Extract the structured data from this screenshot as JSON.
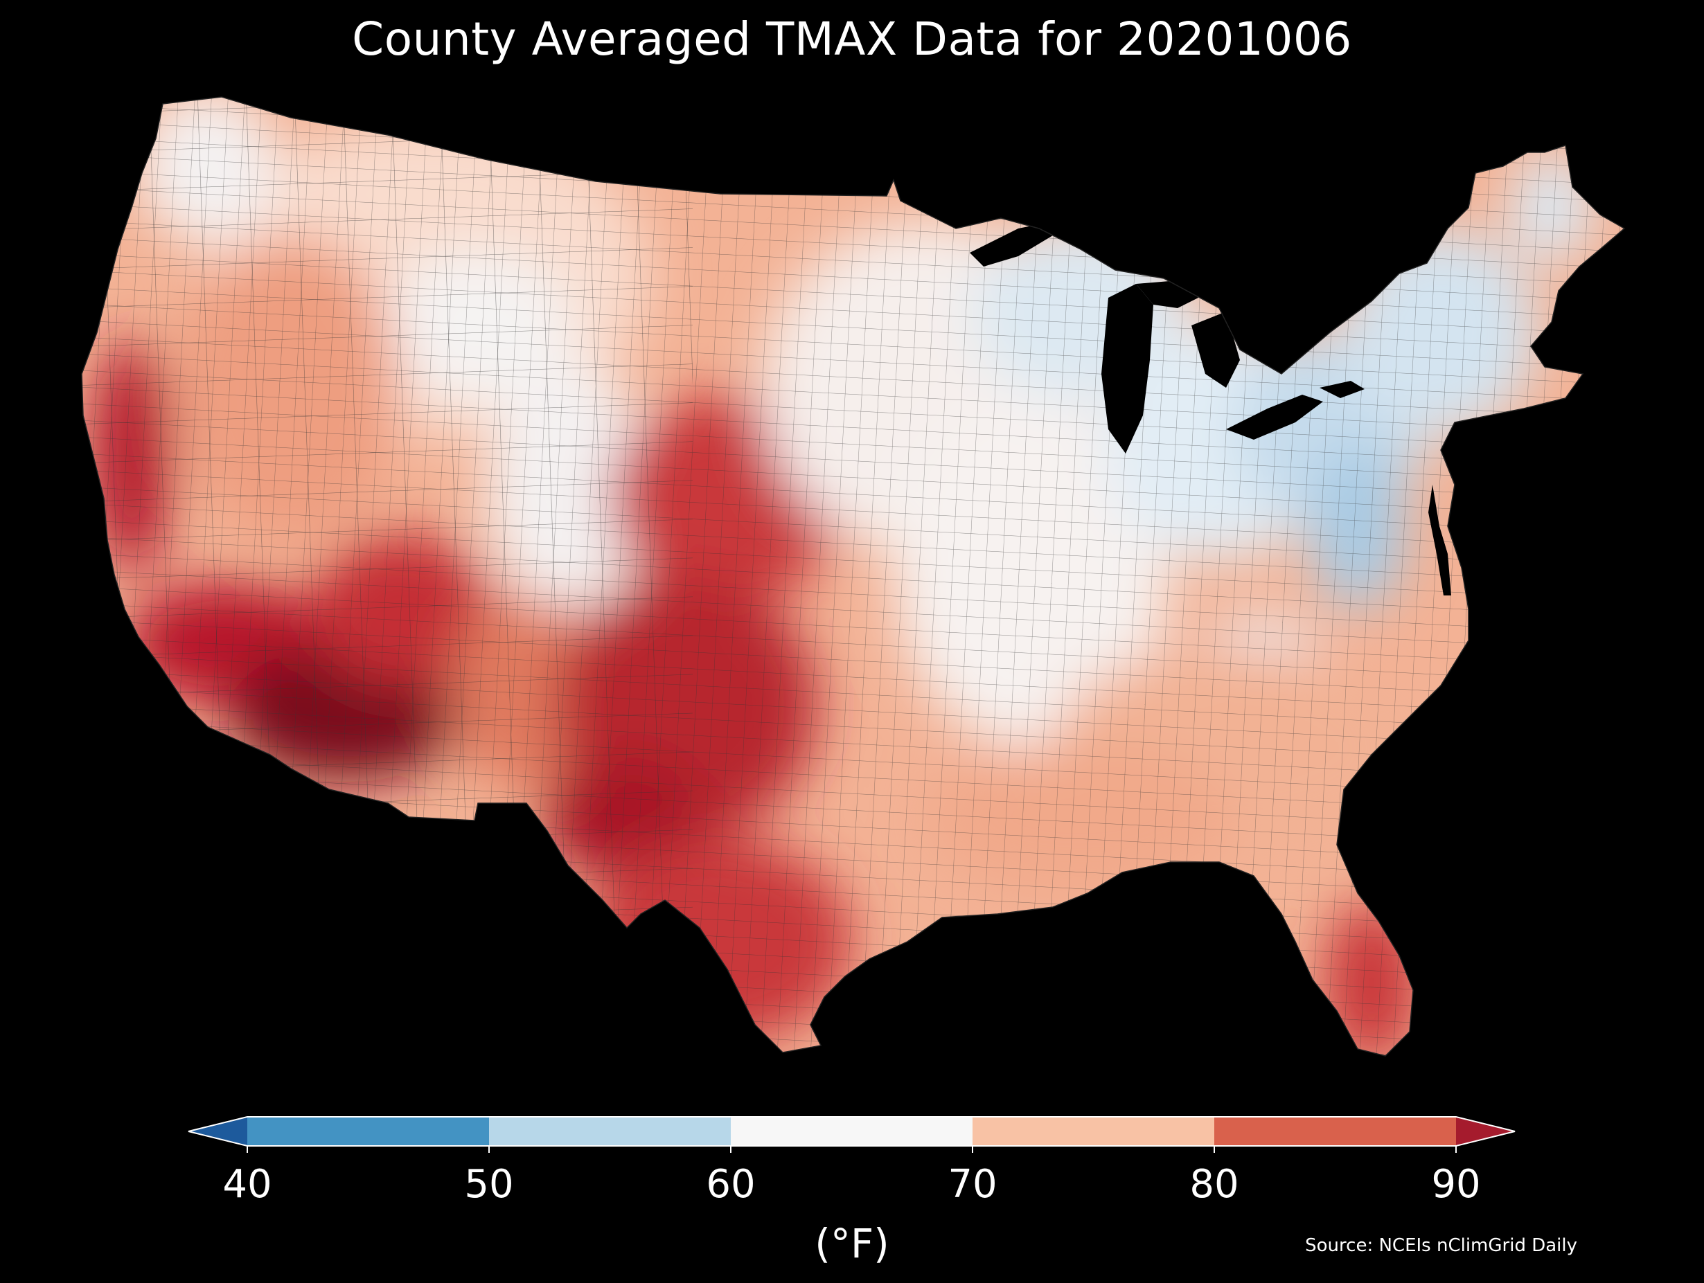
{
  "title": "County Averaged TMAX Data for 20201006",
  "source": "Source: NCEIs nClimGrid Daily",
  "map": {
    "region": "Contiguous United States",
    "background": "#000000",
    "county_border_color": "#2a2a2a",
    "hot_regions": [
      "Arizona",
      "Southern California",
      "Texas",
      "Oklahoma",
      "Kansas",
      "Florida"
    ],
    "cool_regions": [
      "Michigan",
      "Pennsylvania",
      "New York",
      "Vermont",
      "Maine",
      "West Virginia"
    ]
  },
  "colorbar": {
    "unit_label": "(°F)",
    "ticks": [
      "40",
      "50",
      "60",
      "70",
      "80",
      "90"
    ],
    "bins": [
      {
        "from": 40,
        "to": 50,
        "color": "#4393c3"
      },
      {
        "from": 50,
        "to": 60,
        "color": "#b7d7e9"
      },
      {
        "from": 60,
        "to": 70,
        "color": "#f7f7f7"
      },
      {
        "from": 70,
        "to": 80,
        "color": "#f8c2a5"
      },
      {
        "from": 80,
        "to": 90,
        "color": "#d9614c"
      }
    ],
    "under_color": "#1d5a9c",
    "over_color": "#a51b2d",
    "extend": "both"
  }
}
